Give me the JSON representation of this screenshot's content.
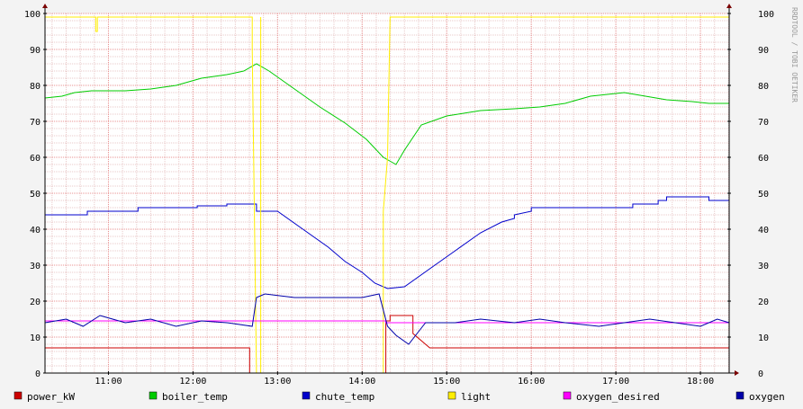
{
  "chart_data": {
    "type": "line",
    "watermark": "RRDTOOL / TOBI OETIKER",
    "ylim": [
      0,
      100
    ],
    "yticks": [
      0,
      10,
      20,
      30,
      40,
      50,
      60,
      70,
      80,
      90,
      100
    ],
    "xlim": [
      10.25,
      18.34
    ],
    "xticks": [
      {
        "label": "11:00",
        "t": 11
      },
      {
        "label": "12:00",
        "t": 12
      },
      {
        "label": "13:00",
        "t": 13
      },
      {
        "label": "14:00",
        "t": 14
      },
      {
        "label": "15:00",
        "t": 15
      },
      {
        "label": "16:00",
        "t": 16
      },
      {
        "label": "17:00",
        "t": 17
      },
      {
        "label": "18:00",
        "t": 18
      }
    ],
    "grid": true,
    "legend_position": "bottom",
    "series": [
      {
        "name": "power_kW",
        "color": "#cc0000",
        "step": true,
        "points": [
          [
            10.25,
            7
          ],
          [
            12.67,
            7
          ],
          [
            12.67,
            0
          ],
          [
            12.75,
            0
          ],
          [
            12.75,
            0
          ],
          [
            14.28,
            0
          ],
          [
            14.28,
            14.5
          ],
          [
            14.33,
            14.5
          ],
          [
            14.33,
            16
          ],
          [
            14.6,
            16
          ],
          [
            14.6,
            11
          ],
          [
            14.75,
            8
          ],
          [
            14.8,
            7
          ],
          [
            18.34,
            7
          ]
        ]
      },
      {
        "name": "boiler_temp",
        "color": "#00cc00",
        "step": false,
        "points": [
          [
            10.25,
            76.5
          ],
          [
            10.45,
            77
          ],
          [
            10.6,
            78
          ],
          [
            10.8,
            78.5
          ],
          [
            11.2,
            78.5
          ],
          [
            11.5,
            79
          ],
          [
            11.8,
            80
          ],
          [
            12.1,
            82
          ],
          [
            12.4,
            83
          ],
          [
            12.6,
            84
          ],
          [
            12.75,
            86
          ],
          [
            12.9,
            84
          ],
          [
            13.2,
            79
          ],
          [
            13.5,
            74
          ],
          [
            13.8,
            69.5
          ],
          [
            14.05,
            65
          ],
          [
            14.25,
            60
          ],
          [
            14.4,
            58
          ],
          [
            14.5,
            62
          ],
          [
            14.7,
            69
          ],
          [
            15.0,
            71.5
          ],
          [
            15.4,
            73
          ],
          [
            15.8,
            73.5
          ],
          [
            16.1,
            74
          ],
          [
            16.4,
            75
          ],
          [
            16.7,
            77
          ],
          [
            17.1,
            78
          ],
          [
            17.35,
            77
          ],
          [
            17.6,
            76
          ],
          [
            17.9,
            75.5
          ],
          [
            18.1,
            75
          ],
          [
            18.34,
            75
          ]
        ]
      },
      {
        "name": "chute_temp",
        "color": "#0000cc",
        "step": true,
        "points": [
          [
            10.25,
            44
          ],
          [
            10.75,
            44
          ],
          [
            10.75,
            45
          ],
          [
            11.35,
            45
          ],
          [
            11.35,
            46
          ],
          [
            12.05,
            46
          ],
          [
            12.05,
            46.5
          ],
          [
            12.4,
            46.5
          ],
          [
            12.4,
            47
          ],
          [
            12.75,
            47
          ],
          [
            12.75,
            45
          ],
          [
            13.0,
            45
          ],
          [
            13.3,
            40
          ],
          [
            13.6,
            35
          ],
          [
            13.8,
            31
          ],
          [
            14.0,
            28
          ],
          [
            14.15,
            25
          ],
          [
            14.3,
            23.5
          ],
          [
            14.5,
            24
          ],
          [
            14.8,
            29
          ],
          [
            15.1,
            34
          ],
          [
            15.4,
            39
          ],
          [
            15.65,
            42
          ],
          [
            15.8,
            43
          ],
          [
            15.8,
            44
          ],
          [
            16.0,
            45
          ],
          [
            16.0,
            46
          ],
          [
            16.7,
            46
          ],
          [
            16.7,
            46
          ],
          [
            17.2,
            46
          ],
          [
            17.2,
            47
          ],
          [
            17.5,
            47
          ],
          [
            17.5,
            48
          ],
          [
            17.6,
            48
          ],
          [
            17.6,
            49
          ],
          [
            18.1,
            49
          ],
          [
            18.1,
            48
          ],
          [
            18.34,
            48
          ]
        ]
      },
      {
        "name": "light",
        "color": "#ffee00",
        "step": true,
        "points": [
          [
            10.25,
            99
          ],
          [
            10.85,
            99
          ],
          [
            10.85,
            95
          ],
          [
            10.87,
            95
          ],
          [
            10.87,
            99
          ],
          [
            12.7,
            99
          ],
          [
            12.7,
            90
          ],
          [
            12.75,
            0
          ],
          [
            12.8,
            0
          ],
          [
            12.8,
            99
          ],
          [
            12.8,
            0
          ],
          [
            14.25,
            0
          ],
          [
            14.25,
            45
          ],
          [
            14.3,
            60
          ],
          [
            14.33,
            99
          ],
          [
            18.34,
            99
          ]
        ]
      },
      {
        "name": "oxygen_desired",
        "color": "#ff00ff",
        "step": true,
        "points": [
          [
            10.25,
            14.5
          ],
          [
            12.75,
            14.5
          ],
          [
            12.75,
            14.5
          ],
          [
            14.28,
            14.5
          ],
          [
            14.28,
            14
          ],
          [
            18.34,
            14
          ]
        ]
      },
      {
        "name": "oxygen",
        "color": "#0000aa",
        "step": false,
        "points": [
          [
            10.25,
            14
          ],
          [
            10.5,
            15
          ],
          [
            10.7,
            13
          ],
          [
            10.9,
            16
          ],
          [
            11.2,
            14
          ],
          [
            11.5,
            15
          ],
          [
            11.8,
            13
          ],
          [
            12.1,
            14.5
          ],
          [
            12.4,
            14
          ],
          [
            12.7,
            13
          ],
          [
            12.75,
            21
          ],
          [
            12.85,
            22
          ],
          [
            13.2,
            21
          ],
          [
            13.6,
            21
          ],
          [
            14.0,
            21
          ],
          [
            14.2,
            22
          ],
          [
            14.3,
            13
          ],
          [
            14.4,
            10.5
          ],
          [
            14.55,
            8
          ],
          [
            14.65,
            11
          ],
          [
            14.75,
            14
          ],
          [
            15.1,
            14
          ],
          [
            15.4,
            15
          ],
          [
            15.8,
            14
          ],
          [
            16.1,
            15
          ],
          [
            16.4,
            14
          ],
          [
            16.8,
            13
          ],
          [
            17.1,
            14
          ],
          [
            17.4,
            15
          ],
          [
            17.7,
            14
          ],
          [
            18.0,
            13
          ],
          [
            18.2,
            15
          ],
          [
            18.34,
            14
          ]
        ]
      }
    ]
  }
}
